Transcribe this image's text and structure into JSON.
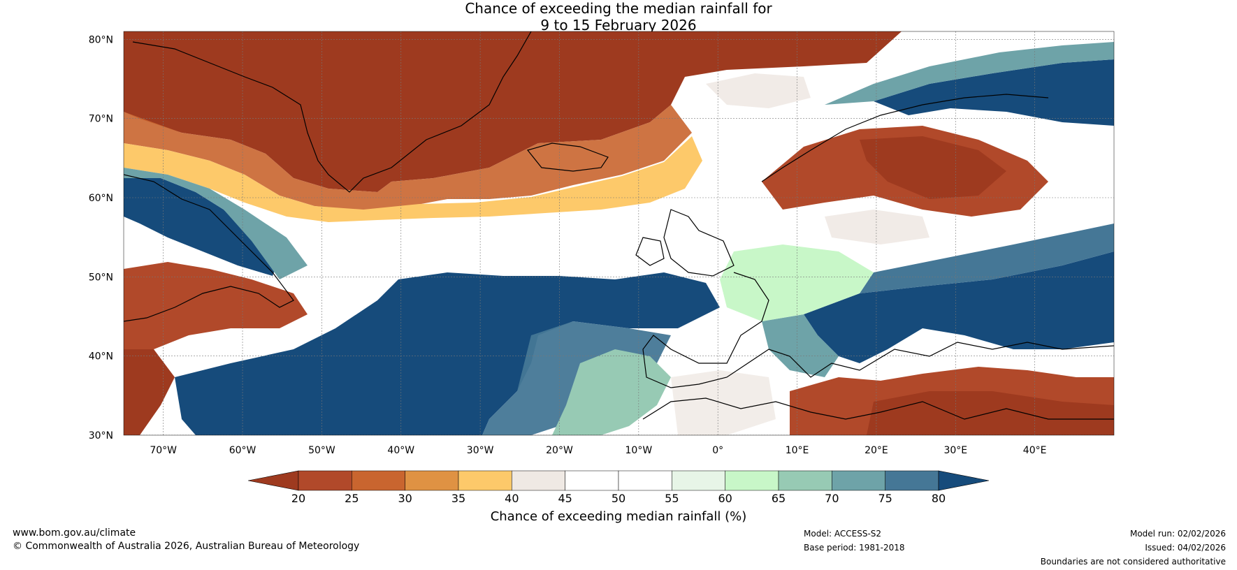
{
  "title": {
    "line1": "Chance of exceeding the median rainfall for",
    "line2": "9 to 15 February 2026"
  },
  "map": {
    "lat_labels": [
      "80°N",
      "70°N",
      "60°N",
      "50°N",
      "40°N",
      "30°N"
    ],
    "lat_values": [
      80,
      70,
      60,
      50,
      40,
      30
    ],
    "lon_labels": [
      "70°W",
      "60°W",
      "50°W",
      "40°W",
      "30°W",
      "20°W",
      "10°W",
      "0°",
      "10°E",
      "20°E",
      "30°E",
      "40°E"
    ],
    "lon_values": [
      -70,
      -60,
      -50,
      -40,
      -30,
      -20,
      -10,
      0,
      10,
      20,
      30,
      40
    ],
    "extent": {
      "lon_min": -75,
      "lon_max": 50,
      "lat_min": 30,
      "lat_max": 81
    }
  },
  "colorbar": {
    "ticks": [
      "20",
      "25",
      "30",
      "35",
      "40",
      "45",
      "50",
      "55",
      "60",
      "65",
      "70",
      "75",
      "80"
    ],
    "colors": [
      "#9e3a1f",
      "#b1492a",
      "#c9652f",
      "#df9243",
      "#fdc96a",
      "#efe9e4",
      "#ffffff",
      "#ffffff",
      "#e7f5e7",
      "#c8f7c8",
      "#97cab4",
      "#6ea3a8",
      "#457796",
      "#164b7b"
    ],
    "label": "Chance of exceeding median rainfall (%)"
  },
  "footer": {
    "website": "www.bom.gov.au/climate",
    "copyright": "© Commonwealth of Australia 2026, Australian Bureau of Meteorology",
    "model": "Model: ACCESS-S2",
    "base_period": "Base period: 1981-2018",
    "model_run": "Model run: 02/02/2026",
    "issued": "Issued: 04/02/2026",
    "disclaimer": "Boundaries are not considered authoritative"
  }
}
